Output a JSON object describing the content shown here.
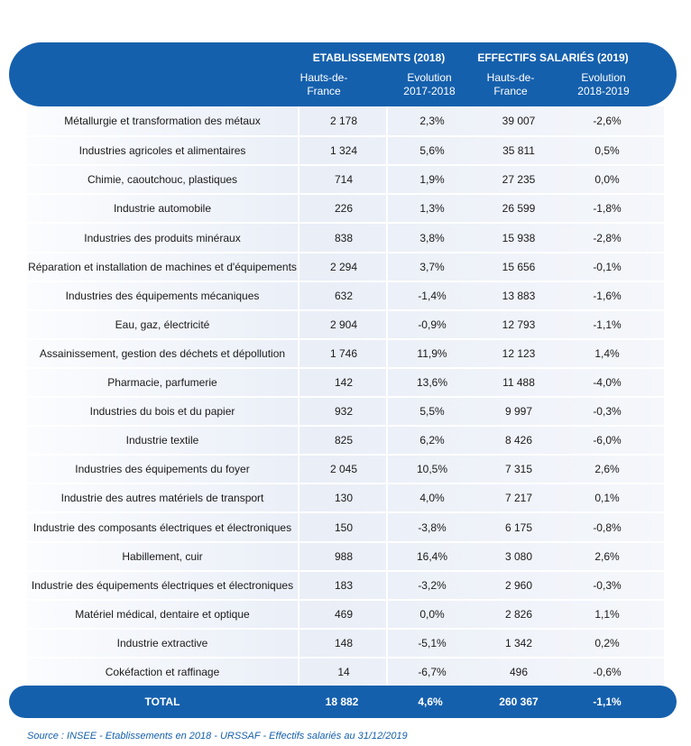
{
  "header": {
    "group1": "ETABLISSEMENTS (2018)",
    "group2": "EFFECTIFS SALARIÉS (2019)",
    "col1": "Hauts-de-France",
    "col2": "Evolution 2017-2018",
    "col3": "Hauts-de-France",
    "col4": "Evolution 2018-2019"
  },
  "rows": [
    [
      "Métallurgie et transformation des métaux",
      "2 178",
      "2,3%",
      "39 007",
      "-2,6%"
    ],
    [
      "Industries agricoles et alimentaires",
      "1 324",
      "5,6%",
      "35 811",
      "0,5%"
    ],
    [
      "Chimie, caoutchouc, plastiques",
      "714",
      "1,9%",
      "27 235",
      "0,0%"
    ],
    [
      "Industrie automobile",
      "226",
      "1,3%",
      "26 599",
      "-1,8%"
    ],
    [
      "Industries des produits minéraux",
      "838",
      "3,8%",
      "15 938",
      "-2,8%"
    ],
    [
      "Réparation et installation de machines et d'équipements",
      "2 294",
      "3,7%",
      "15 656",
      "-0,1%"
    ],
    [
      "Industries des équipements mécaniques",
      "632",
      "-1,4%",
      "13 883",
      "-1,6%"
    ],
    [
      "Eau, gaz, électricité",
      "2 904",
      "-0,9%",
      "12 793",
      "-1,1%"
    ],
    [
      "Assainissement, gestion des déchets et dépollution",
      "1 746",
      "11,9%",
      "12 123",
      "1,4%"
    ],
    [
      "Pharmacie, parfumerie",
      "142",
      "13,6%",
      "11 488",
      "-4,0%"
    ],
    [
      "Industries du bois et du papier",
      "932",
      "5,5%",
      "9 997",
      "-0,3%"
    ],
    [
      "Industrie textile",
      "825",
      "6,2%",
      "8 426",
      "-6,0%"
    ],
    [
      "Industries des équipements du foyer",
      "2 045",
      "10,5%",
      "7 315",
      "2,6%"
    ],
    [
      "Industrie des autres matériels de transport",
      "130",
      "4,0%",
      "7 217",
      "0,1%"
    ],
    [
      "Industrie des composants électriques et électroniques",
      "150",
      "-3,8%",
      "6 175",
      "-0,8%"
    ],
    [
      "Habillement, cuir",
      "988",
      "16,4%",
      "3 080",
      "2,6%"
    ],
    [
      "Industrie des équipements électriques et électroniques",
      "183",
      "-3,2%",
      "2 960",
      "-0,3%"
    ],
    [
      "Matériel médical, dentaire et optique",
      "469",
      "0,0%",
      "2 826",
      "1,1%"
    ],
    [
      "Industrie extractive",
      "148",
      "-5,1%",
      "1 342",
      "0,2%"
    ],
    [
      "Cokéfaction et raffinage",
      "14",
      "-6,7%",
      "496",
      "-0,6%"
    ]
  ],
  "total": [
    "TOTAL",
    "18 882",
    "4,6%",
    "260 367",
    "-1,1%"
  ],
  "source": "Source : INSEE - Etablissements en 2018 - URSSAF - Effectifs salariés au 31/12/2019",
  "colors": {
    "accent": "#1560ad"
  }
}
